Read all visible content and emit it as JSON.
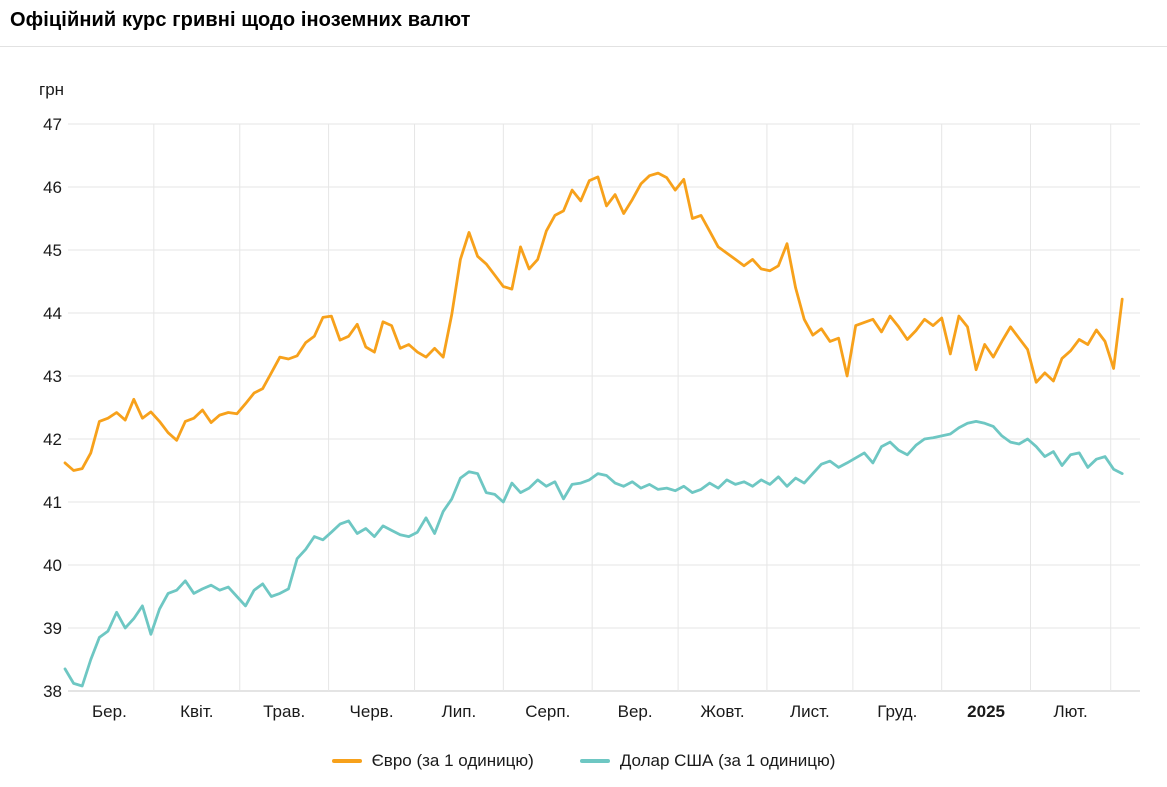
{
  "page": {
    "title": "Офіційний курс гривні щодо іноземних валют"
  },
  "legend": {
    "items": [
      {
        "label": "Євро (за 1 одиницю)",
        "color": "#F7A11B"
      },
      {
        "label": "Долар США (за 1 одиницю)",
        "color": "#6EC7C3"
      }
    ]
  },
  "colors": {
    "grid": "#e6e6e6",
    "axis_line": "#c9c9c9",
    "text": "#1a1a1a",
    "euro": "#F7A11B",
    "usd": "#6EC7C3"
  },
  "chart_data": {
    "type": "line",
    "title": "Офіційний курс гривні щодо іноземних валют",
    "ylabel": "грн",
    "ylim": [
      38,
      47
    ],
    "grid": true,
    "legend_position": "bottom",
    "y_axis": {
      "unit_label": "грн",
      "ticks": [
        38,
        39,
        40,
        41,
        42,
        43,
        44,
        45,
        46,
        47
      ]
    },
    "x_axis": {
      "tick_labels": [
        {
          "label": "Бер.",
          "day": 15.5,
          "bold": false
        },
        {
          "label": "Квіт.",
          "day": 46,
          "bold": false
        },
        {
          "label": "Трав.",
          "day": 76.5,
          "bold": false
        },
        {
          "label": "Черв.",
          "day": 107,
          "bold": false
        },
        {
          "label": "Лип.",
          "day": 137.5,
          "bold": false
        },
        {
          "label": "Серп.",
          "day": 168.5,
          "bold": false
        },
        {
          "label": "Вер.",
          "day": 199,
          "bold": false
        },
        {
          "label": "Жовт.",
          "day": 229.5,
          "bold": false
        },
        {
          "label": "Лист.",
          "day": 260,
          "bold": false
        },
        {
          "label": "Груд.",
          "day": 290.5,
          "bold": false
        },
        {
          "label": "2025",
          "day": 321.5,
          "bold": true
        },
        {
          "label": "Лют.",
          "day": 351,
          "bold": false
        }
      ],
      "gridline_days": [
        31,
        61,
        92,
        122,
        153,
        184,
        214,
        245,
        275,
        306,
        337,
        365
      ]
    },
    "x_days": [
      0,
      3,
      6,
      9,
      12,
      15,
      18,
      21,
      24,
      27,
      30,
      33,
      36,
      39,
      42,
      45,
      48,
      51,
      54,
      57,
      60,
      63,
      66,
      69,
      72,
      75,
      78,
      81,
      84,
      87,
      90,
      93,
      96,
      99,
      102,
      105,
      108,
      111,
      114,
      117,
      120,
      123,
      126,
      129,
      132,
      135,
      138,
      141,
      144,
      147,
      150,
      153,
      156,
      159,
      162,
      165,
      168,
      171,
      174,
      177,
      180,
      183,
      186,
      189,
      192,
      195,
      198,
      201,
      204,
      207,
      210,
      213,
      216,
      219,
      222,
      225,
      228,
      231,
      234,
      237,
      240,
      243,
      246,
      249,
      252,
      255,
      258,
      261,
      264,
      267,
      270,
      273,
      276,
      279,
      282,
      285,
      288,
      291,
      294,
      297,
      300,
      303,
      306,
      309,
      312,
      315,
      318,
      321,
      324,
      327,
      330,
      333,
      336,
      339,
      342,
      345,
      348,
      351,
      354,
      357,
      360,
      363,
      366,
      369
    ],
    "series": [
      {
        "name": "Євро (за 1 одиницю)",
        "color": "#F7A11B",
        "values": [
          41.62,
          41.5,
          41.53,
          41.78,
          42.28,
          42.33,
          42.42,
          42.3,
          42.63,
          42.33,
          42.43,
          42.28,
          42.1,
          41.98,
          42.28,
          42.33,
          42.46,
          42.26,
          42.38,
          42.42,
          42.4,
          42.56,
          42.73,
          42.8,
          43.05,
          43.3,
          43.27,
          43.32,
          43.53,
          43.63,
          43.93,
          43.95,
          43.57,
          43.63,
          43.82,
          43.46,
          43.38,
          43.86,
          43.8,
          43.44,
          43.5,
          43.38,
          43.3,
          43.44,
          43.3,
          43.98,
          44.85,
          45.28,
          44.9,
          44.78,
          44.6,
          44.42,
          44.38,
          45.05,
          44.7,
          44.85,
          45.3,
          45.55,
          45.62,
          45.95,
          45.78,
          46.1,
          46.16,
          45.7,
          45.88,
          45.58,
          45.8,
          46.05,
          46.18,
          46.22,
          46.15,
          45.95,
          46.12,
          45.5,
          45.55,
          45.3,
          45.05,
          44.95,
          44.85,
          44.75,
          44.85,
          44.7,
          44.67,
          44.75,
          45.1,
          44.4,
          43.9,
          43.65,
          43.75,
          43.55,
          43.6,
          43.0,
          43.8,
          43.85,
          43.9,
          43.7,
          43.95,
          43.78,
          43.58,
          43.72,
          43.9,
          43.8,
          43.92,
          43.35,
          43.95,
          43.78,
          43.1,
          43.5,
          43.3,
          43.55,
          43.78,
          43.6,
          43.42,
          42.9,
          43.05,
          42.92,
          43.28,
          43.4,
          43.58,
          43.5,
          43.73,
          43.55,
          43.12,
          44.22
        ]
      },
      {
        "name": "Долар США (за 1 одиницю)",
        "color": "#6EC7C3",
        "values": [
          38.35,
          38.12,
          38.08,
          38.5,
          38.85,
          38.95,
          39.25,
          39.0,
          39.15,
          39.35,
          38.9,
          39.3,
          39.55,
          39.6,
          39.75,
          39.55,
          39.62,
          39.68,
          39.6,
          39.65,
          39.5,
          39.35,
          39.6,
          39.7,
          39.5,
          39.55,
          39.62,
          40.1,
          40.25,
          40.45,
          40.4,
          40.52,
          40.65,
          40.7,
          40.5,
          40.58,
          40.45,
          40.62,
          40.55,
          40.48,
          40.45,
          40.52,
          40.75,
          40.5,
          40.85,
          41.05,
          41.38,
          41.48,
          41.45,
          41.15,
          41.12,
          41.0,
          41.3,
          41.15,
          41.22,
          41.35,
          41.25,
          41.32,
          41.05,
          41.28,
          41.3,
          41.35,
          41.45,
          41.42,
          41.3,
          41.25,
          41.32,
          41.22,
          41.28,
          41.2,
          41.22,
          41.18,
          41.25,
          41.15,
          41.2,
          41.3,
          41.22,
          41.35,
          41.28,
          41.32,
          41.25,
          41.35,
          41.28,
          41.4,
          41.25,
          41.38,
          41.3,
          41.45,
          41.6,
          41.65,
          41.55,
          41.62,
          41.7,
          41.78,
          41.62,
          41.88,
          41.95,
          41.82,
          41.75,
          41.9,
          42.0,
          42.02,
          42.05,
          42.08,
          42.18,
          42.25,
          42.28,
          42.25,
          42.2,
          42.05,
          41.95,
          41.92,
          42.0,
          41.88,
          41.72,
          41.8,
          41.58,
          41.75,
          41.78,
          41.55,
          41.68,
          41.72,
          41.52,
          41.45
        ]
      }
    ]
  }
}
